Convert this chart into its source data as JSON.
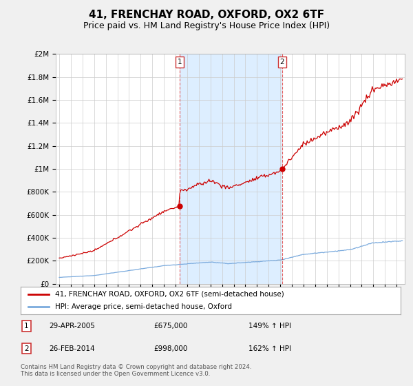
{
  "title": "41, FRENCHAY ROAD, OXFORD, OX2 6TF",
  "subtitle": "Price paid vs. HM Land Registry's House Price Index (HPI)",
  "title_fontsize": 11,
  "subtitle_fontsize": 9,
  "ylim": [
    0,
    2000000
  ],
  "yticks": [
    0,
    200000,
    400000,
    600000,
    800000,
    1000000,
    1200000,
    1400000,
    1600000,
    1800000,
    2000000
  ],
  "ytick_labels": [
    "£0",
    "£200K",
    "£400K",
    "£600K",
    "£800K",
    "£1M",
    "£1.2M",
    "£1.4M",
    "£1.6M",
    "£1.8M",
    "£2M"
  ],
  "sale1_year": 2005.33,
  "sale1_price": 675000,
  "sale1_label": "1",
  "sale1_date": "29-APR-2005",
  "sale1_pct": "149% ↑ HPI",
  "sale2_year": 2014.16,
  "sale2_price": 998000,
  "sale2_label": "2",
  "sale2_date": "26-FEB-2014",
  "sale2_pct": "162% ↑ HPI",
  "red_color": "#cc0000",
  "blue_color": "#7aaadd",
  "shade_color": "#ddeeff",
  "dashed_color": "#dd4444",
  "legend1": "41, FRENCHAY ROAD, OXFORD, OX2 6TF (semi-detached house)",
  "legend2": "HPI: Average price, semi-detached house, Oxford",
  "footer": "Contains HM Land Registry data © Crown copyright and database right 2024.\nThis data is licensed under the Open Government Licence v3.0.",
  "bg_color": "#f0f0f0",
  "plot_bg": "#ffffff",
  "grid_color": "#cccccc"
}
